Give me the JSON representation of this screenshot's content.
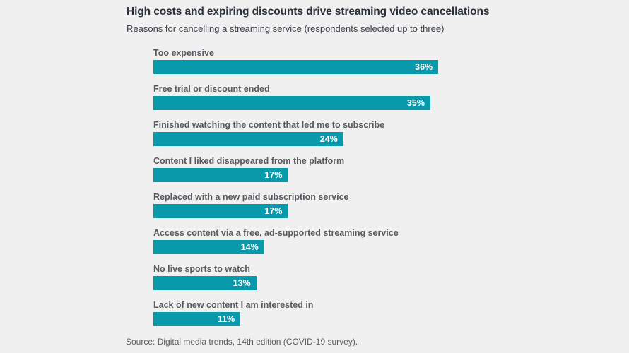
{
  "page": {
    "background_color": "#f0f0f0"
  },
  "chart_data": {
    "type": "bar",
    "orientation": "horizontal",
    "title": "High costs and expiring discounts drive streaming video cancellations",
    "subtitle": "Reasons for cancelling a streaming service (respondents selected up to three)",
    "source": "Source: Digital media trends, 14th edition (COVID-19 survey).",
    "categories": [
      "Too expensive",
      "Free trial or discount ended",
      "Finished watching the content that led me to subscribe",
      "Content I liked disappeared from the platform",
      "Replaced with a new paid subscription service",
      "Access content via a free, ad-supported streaming service",
      "No live sports to watch",
      "Lack of new content I am interested in"
    ],
    "values": [
      36,
      35,
      24,
      17,
      17,
      14,
      13,
      11
    ],
    "value_labels": [
      "36%",
      "35%",
      "24%",
      "17%",
      "17%",
      "14%",
      "13%",
      "11%"
    ],
    "xlim": [
      0,
      36
    ],
    "grid": false,
    "legend": false,
    "bar_color": "#089aab",
    "value_label_color": "#ffffff",
    "value_label_position": "inside-end",
    "category_label_position": "above-bar"
  }
}
